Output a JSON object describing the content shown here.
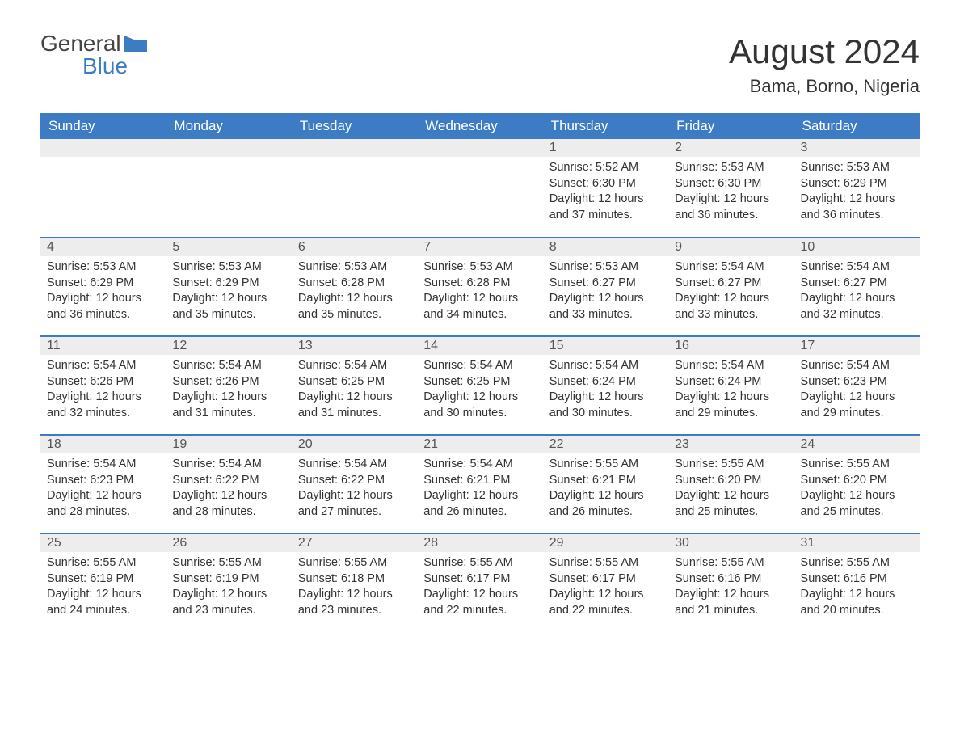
{
  "logo": {
    "word1": "General",
    "word2": "Blue"
  },
  "title": "August 2024",
  "subtitle": "Bama, Borno, Nigeria",
  "colors": {
    "header_bg": "#3d7cc4",
    "header_text": "#ffffff",
    "daynum_bg": "#ededed",
    "row_border": "#3d7cc4",
    "text": "#333333",
    "background": "#ffffff"
  },
  "typography": {
    "title_fontsize": 42,
    "subtitle_fontsize": 22,
    "weekday_fontsize": 17,
    "daynum_fontsize": 16,
    "body_fontsize": 14.5,
    "font_family": "Arial"
  },
  "layout": {
    "columns": 7,
    "rows": 5,
    "first_weekday": "Sunday"
  },
  "weekdays": [
    "Sunday",
    "Monday",
    "Tuesday",
    "Wednesday",
    "Thursday",
    "Friday",
    "Saturday"
  ],
  "weeks": [
    [
      null,
      null,
      null,
      null,
      {
        "day": "1",
        "sunrise": "Sunrise: 5:52 AM",
        "sunset": "Sunset: 6:30 PM",
        "daylight": "Daylight: 12 hours and 37 minutes."
      },
      {
        "day": "2",
        "sunrise": "Sunrise: 5:53 AM",
        "sunset": "Sunset: 6:30 PM",
        "daylight": "Daylight: 12 hours and 36 minutes."
      },
      {
        "day": "3",
        "sunrise": "Sunrise: 5:53 AM",
        "sunset": "Sunset: 6:29 PM",
        "daylight": "Daylight: 12 hours and 36 minutes."
      }
    ],
    [
      {
        "day": "4",
        "sunrise": "Sunrise: 5:53 AM",
        "sunset": "Sunset: 6:29 PM",
        "daylight": "Daylight: 12 hours and 36 minutes."
      },
      {
        "day": "5",
        "sunrise": "Sunrise: 5:53 AM",
        "sunset": "Sunset: 6:29 PM",
        "daylight": "Daylight: 12 hours and 35 minutes."
      },
      {
        "day": "6",
        "sunrise": "Sunrise: 5:53 AM",
        "sunset": "Sunset: 6:28 PM",
        "daylight": "Daylight: 12 hours and 35 minutes."
      },
      {
        "day": "7",
        "sunrise": "Sunrise: 5:53 AM",
        "sunset": "Sunset: 6:28 PM",
        "daylight": "Daylight: 12 hours and 34 minutes."
      },
      {
        "day": "8",
        "sunrise": "Sunrise: 5:53 AM",
        "sunset": "Sunset: 6:27 PM",
        "daylight": "Daylight: 12 hours and 33 minutes."
      },
      {
        "day": "9",
        "sunrise": "Sunrise: 5:54 AM",
        "sunset": "Sunset: 6:27 PM",
        "daylight": "Daylight: 12 hours and 33 minutes."
      },
      {
        "day": "10",
        "sunrise": "Sunrise: 5:54 AM",
        "sunset": "Sunset: 6:27 PM",
        "daylight": "Daylight: 12 hours and 32 minutes."
      }
    ],
    [
      {
        "day": "11",
        "sunrise": "Sunrise: 5:54 AM",
        "sunset": "Sunset: 6:26 PM",
        "daylight": "Daylight: 12 hours and 32 minutes."
      },
      {
        "day": "12",
        "sunrise": "Sunrise: 5:54 AM",
        "sunset": "Sunset: 6:26 PM",
        "daylight": "Daylight: 12 hours and 31 minutes."
      },
      {
        "day": "13",
        "sunrise": "Sunrise: 5:54 AM",
        "sunset": "Sunset: 6:25 PM",
        "daylight": "Daylight: 12 hours and 31 minutes."
      },
      {
        "day": "14",
        "sunrise": "Sunrise: 5:54 AM",
        "sunset": "Sunset: 6:25 PM",
        "daylight": "Daylight: 12 hours and 30 minutes."
      },
      {
        "day": "15",
        "sunrise": "Sunrise: 5:54 AM",
        "sunset": "Sunset: 6:24 PM",
        "daylight": "Daylight: 12 hours and 30 minutes."
      },
      {
        "day": "16",
        "sunrise": "Sunrise: 5:54 AM",
        "sunset": "Sunset: 6:24 PM",
        "daylight": "Daylight: 12 hours and 29 minutes."
      },
      {
        "day": "17",
        "sunrise": "Sunrise: 5:54 AM",
        "sunset": "Sunset: 6:23 PM",
        "daylight": "Daylight: 12 hours and 29 minutes."
      }
    ],
    [
      {
        "day": "18",
        "sunrise": "Sunrise: 5:54 AM",
        "sunset": "Sunset: 6:23 PM",
        "daylight": "Daylight: 12 hours and 28 minutes."
      },
      {
        "day": "19",
        "sunrise": "Sunrise: 5:54 AM",
        "sunset": "Sunset: 6:22 PM",
        "daylight": "Daylight: 12 hours and 28 minutes."
      },
      {
        "day": "20",
        "sunrise": "Sunrise: 5:54 AM",
        "sunset": "Sunset: 6:22 PM",
        "daylight": "Daylight: 12 hours and 27 minutes."
      },
      {
        "day": "21",
        "sunrise": "Sunrise: 5:54 AM",
        "sunset": "Sunset: 6:21 PM",
        "daylight": "Daylight: 12 hours and 26 minutes."
      },
      {
        "day": "22",
        "sunrise": "Sunrise: 5:55 AM",
        "sunset": "Sunset: 6:21 PM",
        "daylight": "Daylight: 12 hours and 26 minutes."
      },
      {
        "day": "23",
        "sunrise": "Sunrise: 5:55 AM",
        "sunset": "Sunset: 6:20 PM",
        "daylight": "Daylight: 12 hours and 25 minutes."
      },
      {
        "day": "24",
        "sunrise": "Sunrise: 5:55 AM",
        "sunset": "Sunset: 6:20 PM",
        "daylight": "Daylight: 12 hours and 25 minutes."
      }
    ],
    [
      {
        "day": "25",
        "sunrise": "Sunrise: 5:55 AM",
        "sunset": "Sunset: 6:19 PM",
        "daylight": "Daylight: 12 hours and 24 minutes."
      },
      {
        "day": "26",
        "sunrise": "Sunrise: 5:55 AM",
        "sunset": "Sunset: 6:19 PM",
        "daylight": "Daylight: 12 hours and 23 minutes."
      },
      {
        "day": "27",
        "sunrise": "Sunrise: 5:55 AM",
        "sunset": "Sunset: 6:18 PM",
        "daylight": "Daylight: 12 hours and 23 minutes."
      },
      {
        "day": "28",
        "sunrise": "Sunrise: 5:55 AM",
        "sunset": "Sunset: 6:17 PM",
        "daylight": "Daylight: 12 hours and 22 minutes."
      },
      {
        "day": "29",
        "sunrise": "Sunrise: 5:55 AM",
        "sunset": "Sunset: 6:17 PM",
        "daylight": "Daylight: 12 hours and 22 minutes."
      },
      {
        "day": "30",
        "sunrise": "Sunrise: 5:55 AM",
        "sunset": "Sunset: 6:16 PM",
        "daylight": "Daylight: 12 hours and 21 minutes."
      },
      {
        "day": "31",
        "sunrise": "Sunrise: 5:55 AM",
        "sunset": "Sunset: 6:16 PM",
        "daylight": "Daylight: 12 hours and 20 minutes."
      }
    ]
  ]
}
